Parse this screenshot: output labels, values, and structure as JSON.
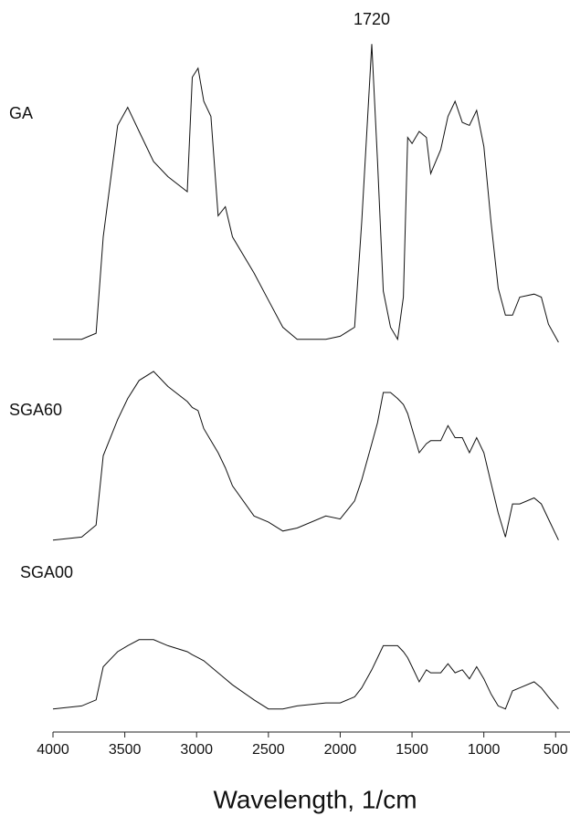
{
  "chart_data": {
    "type": "line",
    "x_label": "Wavelength, 1/cm",
    "annotation": "1720",
    "xlim": [
      4000,
      400
    ],
    "xticks": [
      4000,
      3500,
      3000,
      2500,
      2000,
      1500,
      1000,
      500
    ],
    "x": [
      4000,
      3800,
      3700,
      3650,
      3550,
      3480,
      3400,
      3300,
      3200,
      3065,
      3030,
      2990,
      2950,
      2900,
      2850,
      2800,
      2750,
      2600,
      2500,
      2400,
      2300,
      2100,
      2000,
      1900,
      1850,
      1780,
      1740,
      1700,
      1650,
      1600,
      1560,
      1530,
      1500,
      1450,
      1400,
      1370,
      1300,
      1250,
      1200,
      1150,
      1100,
      1050,
      1000,
      950,
      900,
      850,
      800,
      750,
      650,
      600,
      550,
      480
    ],
    "series": [
      {
        "name": "GA",
        "color": "#111111",
        "values": [
          1,
          1,
          3,
          35,
          72,
          78,
          70,
          60,
          55,
          50,
          88,
          91,
          80,
          75,
          42,
          45,
          35,
          23,
          14,
          5,
          1,
          1,
          2,
          5,
          40,
          99,
          60,
          17,
          5,
          1,
          15,
          68,
          66,
          70,
          68,
          56,
          64,
          75,
          80,
          73,
          72,
          77,
          65,
          40,
          18,
          9,
          9,
          15,
          16,
          15,
          6,
          0
        ]
      },
      {
        "name": "SGA60",
        "color": "#111111",
        "values": [
          1,
          2,
          6,
          29,
          41,
          48,
          54,
          57,
          52,
          47,
          45,
          44,
          38,
          34,
          30,
          25,
          19,
          9,
          7,
          4,
          5,
          9,
          8,
          14,
          21,
          33,
          40,
          50,
          50,
          48,
          46,
          43,
          38,
          30,
          33,
          34,
          34,
          39,
          35,
          35,
          30,
          35,
          30,
          20,
          10,
          2,
          13,
          13,
          15,
          13,
          8,
          1
        ]
      },
      {
        "name": "SGA00",
        "color": "#111111",
        "values": [
          1,
          2,
          4,
          15,
          20,
          22,
          24,
          24,
          22,
          20,
          19,
          18,
          17,
          15,
          13,
          11,
          9,
          4,
          1,
          1,
          2,
          3,
          3,
          5,
          8,
          14,
          18,
          22,
          22,
          22,
          20,
          18,
          15,
          10,
          14,
          13,
          13,
          16,
          13,
          14,
          11,
          15,
          11,
          6,
          2,
          1,
          7,
          8,
          10,
          8,
          5,
          1
        ]
      }
    ]
  }
}
